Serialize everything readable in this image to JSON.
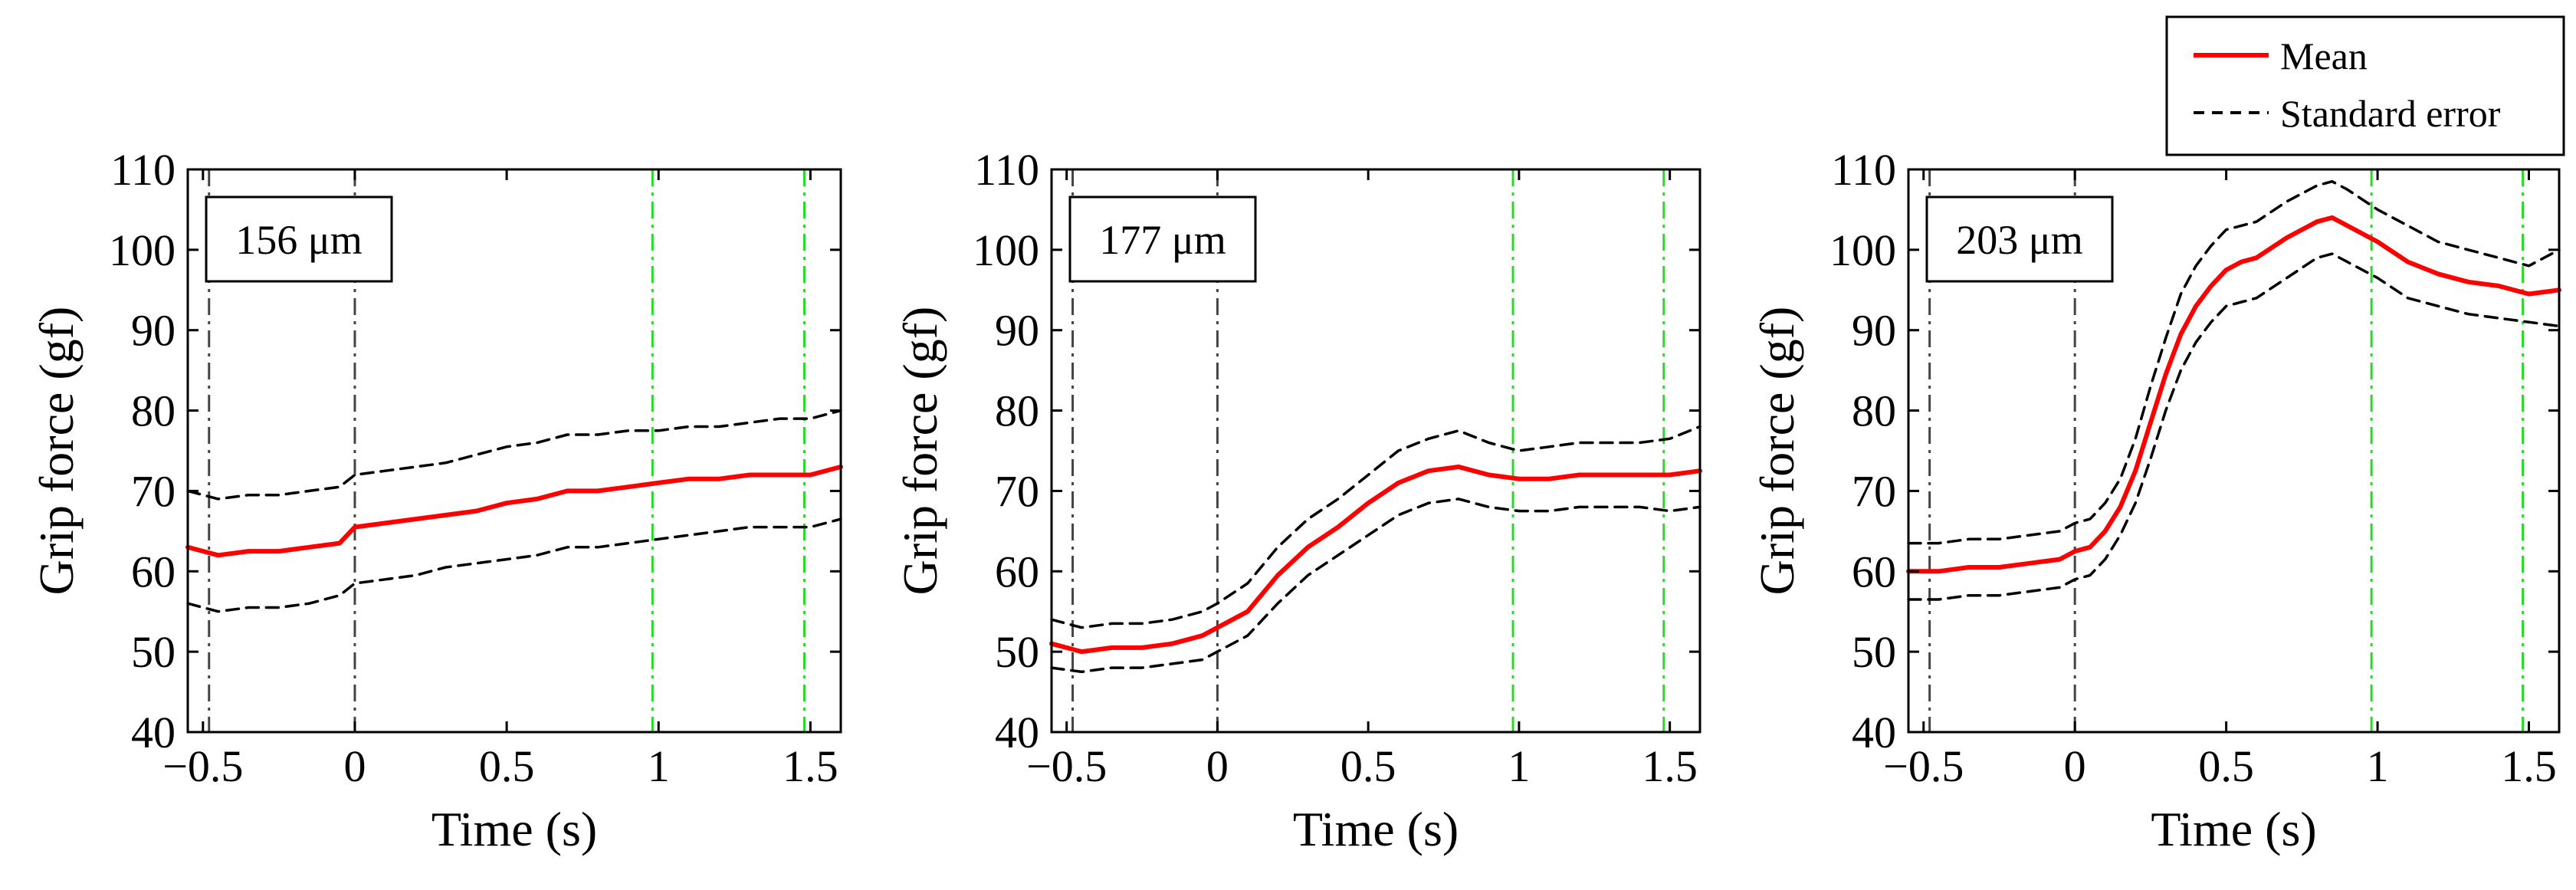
{
  "chart_data": [
    {
      "type": "line",
      "panel_label": "156 μm",
      "xlabel": "Time (s)",
      "ylabel": "Grip force (gf)",
      "xlim": [
        -0.55,
        1.6
      ],
      "ylim": [
        40,
        110
      ],
      "xticks": [
        -0.5,
        0,
        0.5,
        1,
        1.5
      ],
      "xtick_labels": [
        "−0.5",
        "0",
        "0.5",
        "1",
        "1.5"
      ],
      "yticks": [
        40,
        50,
        60,
        70,
        80,
        90,
        100,
        110
      ],
      "ytick_labels": [
        "40",
        "50",
        "60",
        "70",
        "80",
        "90",
        "100",
        "110"
      ],
      "vlines": [
        {
          "x": -0.48,
          "color": "#444444",
          "style": "dashdot"
        },
        {
          "x": 0,
          "color": "#444444",
          "style": "dashdot"
        },
        {
          "x": 0.98,
          "color": "#22dd22",
          "style": "dashdot"
        },
        {
          "x": 1.48,
          "color": "#22dd22",
          "style": "dashdot"
        }
      ],
      "series": [
        {
          "name": "Mean",
          "color": "#ff0000",
          "x": [
            -0.55,
            -0.45,
            -0.35,
            -0.25,
            -0.15,
            -0.05,
            0.0,
            0.1,
            0.2,
            0.3,
            0.4,
            0.5,
            0.6,
            0.7,
            0.8,
            0.9,
            1.0,
            1.1,
            1.2,
            1.3,
            1.4,
            1.5,
            1.6
          ],
          "y": [
            63,
            62,
            62.5,
            62.5,
            63,
            63.5,
            65.5,
            66,
            66.5,
            67,
            67.5,
            68.5,
            69,
            70,
            70,
            70.5,
            71,
            71.5,
            71.5,
            72,
            72,
            72,
            73
          ]
        },
        {
          "name": "Standard error",
          "color": "#000000",
          "x": [
            -0.55,
            -0.45,
            -0.35,
            -0.25,
            -0.15,
            -0.05,
            0.0,
            0.1,
            0.2,
            0.3,
            0.4,
            0.5,
            0.6,
            0.7,
            0.8,
            0.9,
            1.0,
            1.1,
            1.2,
            1.3,
            1.4,
            1.5,
            1.6
          ],
          "y": [
            70,
            69,
            69.5,
            69.5,
            70,
            70.5,
            72,
            72.5,
            73,
            73.5,
            74.5,
            75.5,
            76,
            77,
            77,
            77.5,
            77.5,
            78,
            78,
            78.5,
            79,
            79,
            80
          ]
        },
        {
          "name": "Standard error (lower)",
          "color": "#000000",
          "x": [
            -0.55,
            -0.45,
            -0.35,
            -0.25,
            -0.15,
            -0.05,
            0.0,
            0.1,
            0.2,
            0.3,
            0.4,
            0.5,
            0.6,
            0.7,
            0.8,
            0.9,
            1.0,
            1.1,
            1.2,
            1.3,
            1.4,
            1.5,
            1.6
          ],
          "y": [
            56,
            55,
            55.5,
            55.5,
            56,
            57,
            58.5,
            59,
            59.5,
            60.5,
            61,
            61.5,
            62,
            63,
            63,
            63.5,
            64,
            64.5,
            65,
            65.5,
            65.5,
            65.5,
            66.5
          ]
        }
      ]
    },
    {
      "type": "line",
      "panel_label": "177 μm",
      "xlabel": "Time (s)",
      "ylabel": "Grip force (gf)",
      "xlim": [
        -0.55,
        1.6
      ],
      "ylim": [
        40,
        110
      ],
      "xticks": [
        -0.5,
        0,
        0.5,
        1,
        1.5
      ],
      "xtick_labels": [
        "−0.5",
        "0",
        "0.5",
        "1",
        "1.5"
      ],
      "yticks": [
        40,
        50,
        60,
        70,
        80,
        90,
        100,
        110
      ],
      "ytick_labels": [
        "40",
        "50",
        "60",
        "70",
        "80",
        "90",
        "100",
        "110"
      ],
      "vlines": [
        {
          "x": -0.48,
          "color": "#444444",
          "style": "dashdot"
        },
        {
          "x": 0,
          "color": "#444444",
          "style": "dashdot"
        },
        {
          "x": 0.98,
          "color": "#22dd22",
          "style": "dashdot"
        },
        {
          "x": 1.48,
          "color": "#22dd22",
          "style": "dashdot"
        }
      ],
      "series": [
        {
          "name": "Mean",
          "color": "#ff0000",
          "x": [
            -0.55,
            -0.45,
            -0.35,
            -0.25,
            -0.15,
            -0.05,
            0.0,
            0.1,
            0.2,
            0.3,
            0.4,
            0.5,
            0.6,
            0.7,
            0.8,
            0.9,
            1.0,
            1.1,
            1.2,
            1.3,
            1.4,
            1.5,
            1.6
          ],
          "y": [
            51,
            50,
            50.5,
            50.5,
            51,
            52,
            53,
            55,
            59.5,
            63,
            65.5,
            68.5,
            71,
            72.5,
            73,
            72,
            71.5,
            71.5,
            72,
            72,
            72,
            72,
            72.5
          ]
        },
        {
          "name": "Standard error",
          "color": "#000000",
          "x": [
            -0.55,
            -0.45,
            -0.35,
            -0.25,
            -0.15,
            -0.05,
            0.0,
            0.1,
            0.2,
            0.3,
            0.4,
            0.5,
            0.6,
            0.7,
            0.8,
            0.9,
            1.0,
            1.1,
            1.2,
            1.3,
            1.4,
            1.5,
            1.6
          ],
          "y": [
            54,
            53,
            53.5,
            53.5,
            54,
            55,
            56,
            58.5,
            63,
            66.5,
            69,
            72,
            75,
            76.5,
            77.5,
            76,
            75,
            75.5,
            76,
            76,
            76,
            76.5,
            78
          ]
        },
        {
          "name": "Standard error (lower)",
          "color": "#000000",
          "x": [
            -0.55,
            -0.45,
            -0.35,
            -0.25,
            -0.15,
            -0.05,
            0.0,
            0.1,
            0.2,
            0.3,
            0.4,
            0.5,
            0.6,
            0.7,
            0.8,
            0.9,
            1.0,
            1.1,
            1.2,
            1.3,
            1.4,
            1.5,
            1.6
          ],
          "y": [
            48,
            47.5,
            48,
            48,
            48.5,
            49,
            50,
            52,
            56,
            59.5,
            62,
            64.5,
            67,
            68.5,
            69,
            68,
            67.5,
            67.5,
            68,
            68,
            68,
            67.5,
            68
          ]
        }
      ]
    },
    {
      "type": "line",
      "panel_label": "203 μm",
      "xlabel": "Time (s)",
      "ylabel": "Grip force (gf)",
      "xlim": [
        -0.55,
        1.6
      ],
      "ylim": [
        40,
        110
      ],
      "xticks": [
        -0.5,
        0,
        0.5,
        1,
        1.5
      ],
      "xtick_labels": [
        "−0.5",
        "0",
        "0.5",
        "1",
        "1.5"
      ],
      "yticks": [
        40,
        50,
        60,
        70,
        80,
        90,
        100,
        110
      ],
      "ytick_labels": [
        "40",
        "50",
        "60",
        "70",
        "80",
        "90",
        "100",
        "110"
      ],
      "vlines": [
        {
          "x": -0.48,
          "color": "#444444",
          "style": "dashdot"
        },
        {
          "x": 0,
          "color": "#444444",
          "style": "dashdot"
        },
        {
          "x": 0.98,
          "color": "#22dd22",
          "style": "dashdot"
        },
        {
          "x": 1.48,
          "color": "#22dd22",
          "style": "dashdot"
        }
      ],
      "series": [
        {
          "name": "Mean",
          "color": "#ff0000",
          "x": [
            -0.55,
            -0.45,
            -0.35,
            -0.25,
            -0.15,
            -0.05,
            0.0,
            0.05,
            0.1,
            0.15,
            0.2,
            0.25,
            0.3,
            0.35,
            0.4,
            0.45,
            0.5,
            0.55,
            0.6,
            0.7,
            0.8,
            0.85,
            0.9,
            1.0,
            1.1,
            1.2,
            1.3,
            1.4,
            1.5,
            1.6
          ],
          "y": [
            60,
            60,
            60.5,
            60.5,
            61,
            61.5,
            62.5,
            63,
            65,
            68,
            72.5,
            78.5,
            84.5,
            89.5,
            93,
            95.5,
            97.5,
            98.5,
            99,
            101.5,
            103.5,
            104,
            103,
            101,
            98.5,
            97,
            96,
            95.5,
            94.5,
            95
          ]
        },
        {
          "name": "Standard error",
          "color": "#000000",
          "x": [
            -0.55,
            -0.45,
            -0.35,
            -0.25,
            -0.15,
            -0.05,
            0.0,
            0.05,
            0.1,
            0.15,
            0.2,
            0.25,
            0.3,
            0.35,
            0.4,
            0.45,
            0.5,
            0.55,
            0.6,
            0.7,
            0.8,
            0.85,
            0.9,
            1.0,
            1.1,
            1.2,
            1.3,
            1.4,
            1.5,
            1.6
          ],
          "y": [
            63.5,
            63.5,
            64,
            64,
            64.5,
            65,
            66,
            66.5,
            68.5,
            71.5,
            76.5,
            83,
            89,
            94.5,
            98,
            100.5,
            102.5,
            103,
            103.5,
            106,
            108,
            108.5,
            107.5,
            105,
            103,
            101,
            100,
            99,
            98,
            100
          ]
        },
        {
          "name": "Standard error (lower)",
          "color": "#000000",
          "x": [
            -0.55,
            -0.45,
            -0.35,
            -0.25,
            -0.15,
            -0.05,
            0.0,
            0.05,
            0.1,
            0.15,
            0.2,
            0.25,
            0.3,
            0.35,
            0.4,
            0.45,
            0.5,
            0.55,
            0.6,
            0.7,
            0.8,
            0.85,
            0.9,
            1.0,
            1.1,
            1.2,
            1.3,
            1.4,
            1.5,
            1.6
          ],
          "y": [
            56.5,
            56.5,
            57,
            57,
            57.5,
            58,
            59,
            59.5,
            61.5,
            64.5,
            68.5,
            74,
            80,
            85,
            88.5,
            91,
            93,
            93.5,
            94,
            96.5,
            99,
            99.5,
            98.5,
            96.5,
            94,
            93,
            92,
            91.5,
            91,
            90.5
          ]
        }
      ]
    }
  ],
  "legend": {
    "entries": [
      {
        "label": "Mean",
        "color": "#ff0000",
        "style": "solid"
      },
      {
        "label": "Standard error",
        "color": "#000000",
        "style": "dashed"
      }
    ],
    "position": "top-right"
  }
}
